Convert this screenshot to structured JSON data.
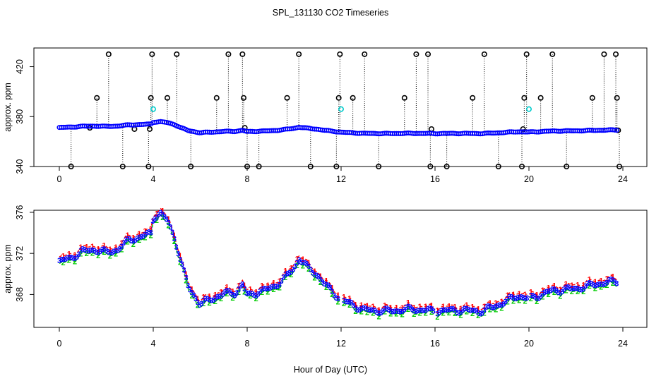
{
  "chart_data": {
    "title": "SPL_131130  CO2 Timeseries",
    "xlabel": "Hour of Day (UTC)",
    "x_ticks": [
      0,
      4,
      8,
      12,
      16,
      20,
      24
    ],
    "x_tick_labels": [
      "0",
      "4",
      "8",
      "12",
      "16",
      "20",
      "24"
    ],
    "xlim": [
      -1,
      25
    ],
    "colors": {
      "series_blue": "#0000ff",
      "series_black": "#000000",
      "outlier_cyan": "#00cccc",
      "series_red": "#ff0000",
      "series_green": "#00cc00"
    },
    "panels": [
      {
        "type": "scatter",
        "ylabel": "approx. ppm",
        "ylim": [
          340,
          435
        ],
        "y_ticks": [
          340,
          380,
          420
        ],
        "y_tick_labels": [
          "340",
          "380",
          "420"
        ],
        "grid": false,
        "baseline_series": {
          "name": "CO2 (blue)",
          "x": [
            0,
            0.5,
            1,
            1.5,
            2,
            2.5,
            3,
            3.5,
            3.9,
            4.0,
            4.3,
            4.6,
            4.9,
            5.2,
            5.5,
            6.0,
            6.5,
            7.0,
            7.5,
            7.8,
            8.0,
            8.5,
            9.0,
            9.5,
            10.0,
            10.2,
            10.5,
            11.0,
            11.3,
            12.0,
            13.0,
            14.0,
            15.0,
            16.0,
            17.0,
            18.0,
            19.0,
            19.5,
            20.0,
            21.0,
            22.0,
            23.0,
            23.8
          ],
          "y": [
            371.2,
            371.6,
            372.2,
            372.4,
            372.1,
            372.4,
            373.4,
            373.6,
            374.0,
            375.6,
            375.9,
            375.2,
            373.6,
            371.0,
            368.7,
            367.1,
            367.6,
            368.1,
            368.2,
            369.0,
            367.9,
            368.3,
            368.6,
            369.4,
            370.6,
            371.6,
            370.8,
            369.9,
            369.0,
            367.5,
            366.5,
            366.4,
            366.6,
            366.4,
            366.5,
            366.4,
            367.3,
            367.9,
            367.6,
            368.4,
            368.6,
            369.1,
            369.3
          ]
        },
        "spikes": {
          "name": "CO2 spikes (black)",
          "points": [
            [
              0.5,
              340
            ],
            [
              1.3,
              371
            ],
            [
              1.6,
              395
            ],
            [
              2.1,
              430
            ],
            [
              2.7,
              340
            ],
            [
              3.2,
              370
            ],
            [
              3.8,
              340
            ],
            [
              3.85,
              370
            ],
            [
              3.9,
              395
            ],
            [
              3.95,
              430
            ],
            [
              4.6,
              395
            ],
            [
              5.0,
              430
            ],
            [
              5.6,
              340
            ],
            [
              6.7,
              395
            ],
            [
              7.2,
              430
            ],
            [
              7.8,
              430
            ],
            [
              7.85,
              395
            ],
            [
              7.9,
              371
            ],
            [
              8.0,
              340
            ],
            [
              8.5,
              340
            ],
            [
              9.7,
              395
            ],
            [
              10.2,
              430
            ],
            [
              10.7,
              340
            ],
            [
              11.8,
              340
            ],
            [
              11.9,
              395
            ],
            [
              11.95,
              430
            ],
            [
              12.5,
              395
            ],
            [
              13.0,
              430
            ],
            [
              13.6,
              340
            ],
            [
              14.7,
              395
            ],
            [
              15.2,
              430
            ],
            [
              15.7,
              430
            ],
            [
              15.8,
              340
            ],
            [
              15.85,
              370
            ],
            [
              16.5,
              340
            ],
            [
              17.6,
              395
            ],
            [
              18.1,
              430
            ],
            [
              18.7,
              340
            ],
            [
              19.7,
              340
            ],
            [
              19.75,
              370
            ],
            [
              19.8,
              395
            ],
            [
              19.9,
              430
            ],
            [
              20.5,
              395
            ],
            [
              21.0,
              430
            ],
            [
              21.6,
              340
            ],
            [
              22.7,
              395
            ],
            [
              23.2,
              430
            ],
            [
              23.7,
              430
            ],
            [
              23.75,
              395
            ],
            [
              23.8,
              369
            ],
            [
              23.85,
              340
            ]
          ]
        },
        "cyan_points": [
          [
            4.0,
            386
          ],
          [
            12.0,
            386
          ],
          [
            20.0,
            386
          ]
        ]
      },
      {
        "type": "line",
        "ylabel": "approx. ppm",
        "ylim": [
          364.8,
          376.2
        ],
        "y_ticks": [
          368,
          372,
          376
        ],
        "y_tick_labels": [
          "368",
          "372",
          "376"
        ],
        "grid": false,
        "gaps_after_hour": [
          12,
          16,
          20
        ],
        "series": [
          {
            "name": "3 (blue)",
            "marker": "3",
            "x": [
              0,
              0.5,
              1,
              1.5,
              2,
              2.5,
              3,
              3.5,
              3.9,
              4.0,
              4.3,
              4.6,
              4.9,
              5.2,
              5.5,
              6.0,
              6.5,
              7.0,
              7.5,
              7.8,
              8.0,
              8.5,
              9.0,
              9.5,
              10.0,
              10.2,
              10.5,
              11.0,
              11.3,
              12.0,
              13.0,
              14.0,
              15.0,
              16.0,
              17.0,
              18.0,
              19.0,
              19.5,
              20.0,
              21.0,
              22.0,
              23.0,
              23.8
            ],
            "values": [
              371.2,
              371.6,
              372.2,
              372.4,
              372.1,
              372.4,
              373.4,
              373.6,
              374.0,
              375.6,
              375.9,
              375.2,
              373.6,
              371.0,
              368.7,
              367.1,
              367.6,
              368.1,
              368.2,
              369.0,
              367.9,
              368.3,
              368.6,
              369.4,
              370.6,
              371.6,
              370.8,
              369.9,
              369.0,
              367.5,
              366.5,
              366.4,
              366.6,
              366.4,
              366.5,
              366.4,
              367.3,
              367.9,
              367.6,
              368.4,
              368.6,
              369.1,
              369.3
            ]
          },
          {
            "name": "1 (red)",
            "marker": "1",
            "offset": 0.35
          },
          {
            "name": "2 (green)",
            "marker": "2",
            "offset": -0.3
          }
        ]
      }
    ]
  }
}
